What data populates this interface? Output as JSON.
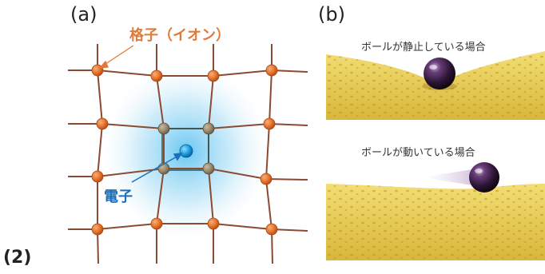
{
  "figure": {
    "number_label": "(2)",
    "panel_a": {
      "label": "(a)",
      "lattice_label": "格子（イオン）",
      "electron_label": "電子",
      "colors": {
        "ion": "#e8742b",
        "ion_near_electron": "#9a8a6e",
        "bond": "#8b4a32",
        "electron": "#1e9fe0",
        "glow": "#6fc7ef",
        "label_orange": "#e07a3a",
        "label_blue": "#1c6fb8"
      }
    },
    "panel_b": {
      "label": "(b)",
      "caption_static": "ボールが静止している場合",
      "caption_moving": "ボールが動いている場合",
      "colors": {
        "sponge": "#e9cf55",
        "sponge_shadow": "#c9a92e",
        "ball": "#3a1f45"
      }
    }
  }
}
